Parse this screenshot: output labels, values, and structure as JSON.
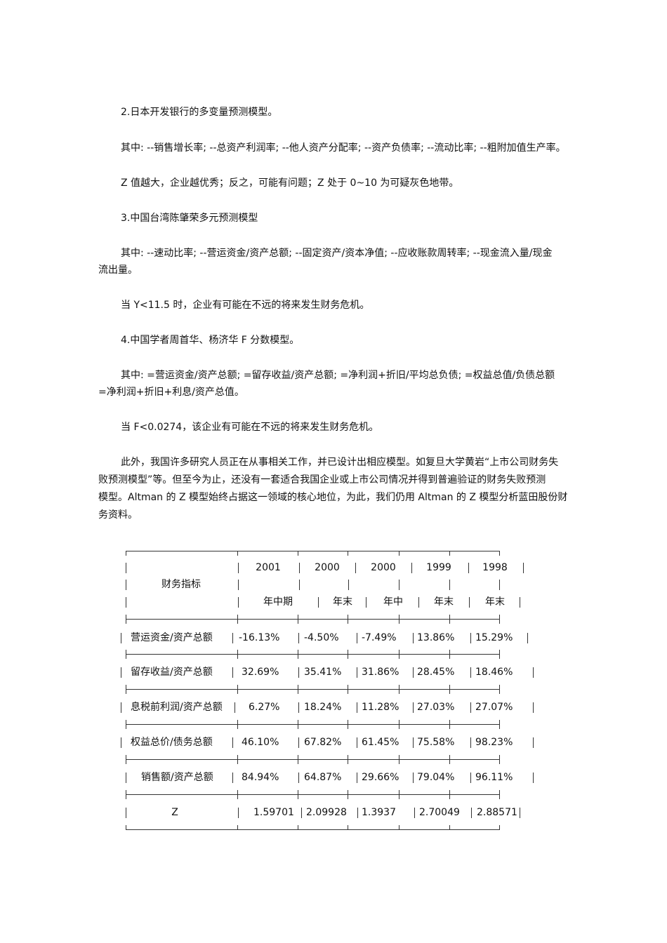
{
  "paragraphs": [
    {
      "lines": [
        "2.日本开发银行的多变量预测模型。"
      ]
    },
    {
      "lines": [
        "其中: --销售增长率; --总资产利润率; --他人资产分配率; --资产负债率; --流动比率; --粗附加值生产率。"
      ]
    },
    {
      "lines": [
        "Z 值越大，企业越优秀；反之，可能有问题；Z 处于 0~10 为可疑灰色地带。"
      ]
    },
    {
      "lines": [
        "3.中国台湾陈肇荣多元预测模型"
      ]
    },
    {
      "lines": [
        "其中: --速动比率; --营运资金/资产总额; --固定资产/资本净值; --应收账款周转率; --现金流入量/现金",
        "流出量。"
      ]
    },
    {
      "lines": [
        "当 Y<11.5 时，企业有可能在不远的将来发生财务危机。"
      ]
    },
    {
      "lines": [
        "4.中国学者周首华、杨济华 F 分数模型。"
      ]
    },
    {
      "lines": [
        "其中: =营运资金/资产总额; =留存收益/资产总额; =净利润+折旧/平均总负债; =权益总值/负债总额",
        "=净利润+折旧+利息/资产总值。"
      ]
    },
    {
      "lines": [
        "当 F<0.0274，该企业有可能在不远的将来发生财务危机。"
      ]
    },
    {
      "lines": [
        "此外，我国许多研究人员正在从事相关工作，并已设计出相应模型。如复旦大学黄岩“上市公司财务失",
        "败预测模型”等。但至今为止，还没有一套适合我国企业或上市公司情况并得到普遍验证的财务失败预测",
        "模型。Altman 的 Z 模型始终占据这一领域的核心地位，为此，我们仍用 Altman 的 Z 模型分析蓝田股份财",
        "务资料。"
      ]
    }
  ],
  "table": {
    "header_label": "财务指标",
    "years": [
      "2001",
      "2000",
      "2000",
      "1999",
      "1998"
    ],
    "periods": [
      "年中期",
      "年末",
      "年中",
      "年末",
      "年末"
    ],
    "rows": [
      {
        "label": "营运资金/资产总额",
        "values": [
          "-16.13%",
          "-4.50%",
          "-7.49%",
          "13.86%",
          "15.29%"
        ]
      },
      {
        "label": "留存收益/资产总额",
        "values": [
          "32.69%",
          "35.41%",
          "31.86%",
          "28.45%",
          "18.46%"
        ]
      },
      {
        "label": "息税前利润/资产总额",
        "values": [
          "6.27%",
          "18.24%",
          "11.28%",
          "27.03%",
          "27.07%"
        ]
      },
      {
        "label": "权益总价/债务总额",
        "values": [
          "46.10%",
          "67.82%",
          "61.45%",
          "75.58%",
          "98.23%"
        ]
      },
      {
        "label": "销售额/资产总额",
        "values": [
          "84.94%",
          "64.87%",
          "29.66%",
          "79.04%",
          "96.11%"
        ]
      },
      {
        "label": "Z",
        "values": [
          "1.59701",
          "2.09928",
          "1.3937",
          "2.70049",
          "2.88571"
        ]
      }
    ]
  }
}
